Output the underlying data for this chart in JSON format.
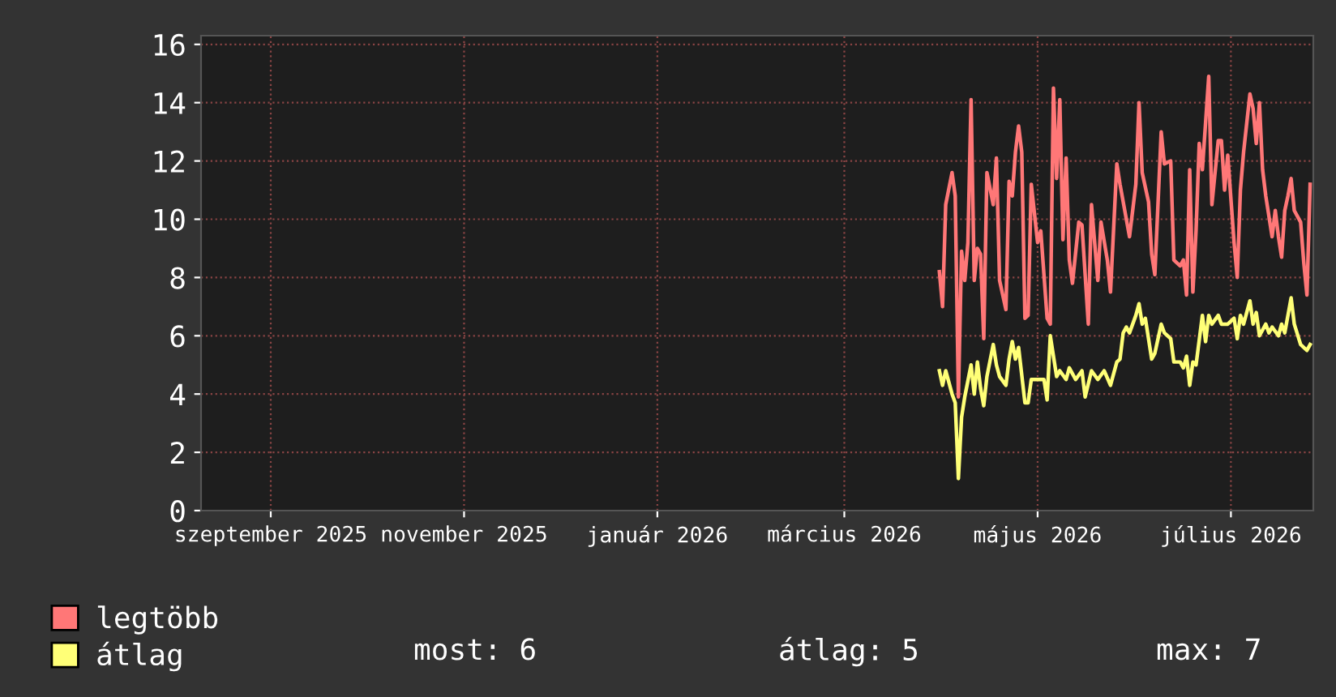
{
  "chart_data": {
    "type": "line",
    "xlim": [
      "2025-08-10",
      "2026-07-27"
    ],
    "xticks": [
      {
        "value": "2025-09-01",
        "label": "szeptember 2025"
      },
      {
        "value": "2025-11-01",
        "label": "november 2025"
      },
      {
        "value": "2026-01-01",
        "label": "január 2026"
      },
      {
        "value": "2026-03-01",
        "label": "március 2026"
      },
      {
        "value": "2026-05-01",
        "label": "május 2026"
      },
      {
        "value": "2026-07-01",
        "label": "július 2026"
      }
    ],
    "ylim": [
      0,
      16.3
    ],
    "yticks": [
      0,
      2,
      4,
      6,
      8,
      10,
      12,
      14,
      16
    ],
    "grid": true,
    "legend": "bottom left",
    "series": [
      {
        "name": "legtöbb",
        "color": "#ff7777",
        "x": [
          "2026-03-31",
          "2026-04-01",
          "2026-04-02",
          "2026-04-04",
          "2026-04-05",
          "2026-04-06",
          "2026-04-07",
          "2026-04-08",
          "2026-04-09",
          "2026-04-10",
          "2026-04-11",
          "2026-04-12",
          "2026-04-13",
          "2026-04-14",
          "2026-04-15",
          "2026-04-17",
          "2026-04-18",
          "2026-04-19",
          "2026-04-21",
          "2026-04-22",
          "2026-04-23",
          "2026-04-24",
          "2026-04-25",
          "2026-04-26",
          "2026-04-27",
          "2026-04-28",
          "2026-04-29",
          "2026-05-01",
          "2026-05-02",
          "2026-05-04",
          "2026-05-05",
          "2026-05-06",
          "2026-05-07",
          "2026-05-08",
          "2026-05-09",
          "2026-05-10",
          "2026-05-11",
          "2026-05-12",
          "2026-05-14",
          "2026-05-15",
          "2026-05-17",
          "2026-05-18",
          "2026-05-20",
          "2026-05-21",
          "2026-05-23",
          "2026-05-24",
          "2026-05-26",
          "2026-05-27",
          "2026-05-28",
          "2026-05-30",
          "2026-06-01",
          "2026-06-02",
          "2026-06-03",
          "2026-06-05",
          "2026-06-06",
          "2026-06-07",
          "2026-06-09",
          "2026-06-10",
          "2026-06-12",
          "2026-06-13",
          "2026-06-15",
          "2026-06-16",
          "2026-06-17",
          "2026-06-18",
          "2026-06-19",
          "2026-06-20",
          "2026-06-21",
          "2026-06-22",
          "2026-06-24",
          "2026-06-25",
          "2026-06-27",
          "2026-06-28",
          "2026-06-29",
          "2026-06-30",
          "2026-07-02",
          "2026-07-03",
          "2026-07-04",
          "2026-07-05",
          "2026-07-07",
          "2026-07-08",
          "2026-07-09",
          "2026-07-10",
          "2026-07-11",
          "2026-07-12",
          "2026-07-14",
          "2026-07-15",
          "2026-07-16",
          "2026-07-17",
          "2026-07-18",
          "2026-07-19",
          "2026-07-20",
          "2026-07-21",
          "2026-07-23",
          "2026-07-24",
          "2026-07-25",
          "2026-07-26"
        ],
        "values": [
          8.2,
          7.0,
          10.5,
          11.6,
          10.8,
          3.9,
          8.9,
          7.9,
          9.2,
          14.1,
          7.9,
          9.0,
          8.8,
          5.9,
          11.6,
          10.5,
          12.1,
          7.9,
          6.9,
          11.3,
          10.8,
          12.3,
          13.2,
          12.3,
          6.6,
          6.7,
          11.2,
          9.2,
          9.6,
          6.6,
          6.4,
          14.5,
          11.4,
          14.1,
          9.3,
          12.1,
          8.6,
          7.8,
          9.9,
          9.8,
          6.4,
          10.5,
          7.9,
          9.9,
          8.6,
          7.5,
          11.9,
          11.2,
          10.6,
          9.4,
          11.2,
          14.0,
          11.6,
          10.6,
          8.8,
          8.1,
          13.0,
          11.9,
          12.0,
          8.6,
          8.4,
          8.6,
          7.4,
          11.7,
          7.5,
          9.6,
          12.6,
          11.7,
          14.9,
          10.5,
          12.7,
          12.7,
          11.0,
          12.2,
          9.2,
          8.0,
          11.0,
          12.3,
          14.3,
          13.8,
          12.6,
          14.0,
          11.7,
          10.8,
          9.4,
          10.3,
          9.4,
          8.7,
          10.3,
          10.8,
          11.4,
          10.3,
          9.9,
          8.5,
          7.4,
          11.2
        ]
      },
      {
        "name": "átlag",
        "color": "#ffff77",
        "x": [
          "2026-03-31",
          "2026-04-01",
          "2026-04-02",
          "2026-04-04",
          "2026-04-05",
          "2026-04-06",
          "2026-04-07",
          "2026-04-08",
          "2026-04-10",
          "2026-04-11",
          "2026-04-12",
          "2026-04-13",
          "2026-04-14",
          "2026-04-15",
          "2026-04-17",
          "2026-04-18",
          "2026-04-19",
          "2026-04-21",
          "2026-04-22",
          "2026-04-23",
          "2026-04-24",
          "2026-04-25",
          "2026-04-27",
          "2026-04-28",
          "2026-04-29",
          "2026-05-01",
          "2026-05-03",
          "2026-05-04",
          "2026-05-05",
          "2026-05-07",
          "2026-05-08",
          "2026-05-10",
          "2026-05-11",
          "2026-05-13",
          "2026-05-15",
          "2026-05-16",
          "2026-05-18",
          "2026-05-20",
          "2026-05-22",
          "2026-05-24",
          "2026-05-26",
          "2026-05-27",
          "2026-05-28",
          "2026-05-29",
          "2026-05-30",
          "2026-06-01",
          "2026-06-02",
          "2026-06-03",
          "2026-06-04",
          "2026-06-06",
          "2026-06-07",
          "2026-06-09",
          "2026-06-10",
          "2026-06-12",
          "2026-06-13",
          "2026-06-15",
          "2026-06-16",
          "2026-06-17",
          "2026-06-18",
          "2026-06-19",
          "2026-06-20",
          "2026-06-22",
          "2026-06-23",
          "2026-06-24",
          "2026-06-25",
          "2026-06-27",
          "2026-06-28",
          "2026-06-30",
          "2026-07-02",
          "2026-07-03",
          "2026-07-04",
          "2026-07-05",
          "2026-07-07",
          "2026-07-08",
          "2026-07-09",
          "2026-07-10",
          "2026-07-12",
          "2026-07-13",
          "2026-07-14",
          "2026-07-16",
          "2026-07-17",
          "2026-07-18",
          "2026-07-20",
          "2026-07-21",
          "2026-07-23",
          "2026-07-25",
          "2026-07-26"
        ],
        "values": [
          4.8,
          4.3,
          4.8,
          4.0,
          3.7,
          1.1,
          3.2,
          3.9,
          5.0,
          4.0,
          5.1,
          4.2,
          3.6,
          4.6,
          5.7,
          5.0,
          4.6,
          4.3,
          5.2,
          5.8,
          5.2,
          5.6,
          3.7,
          3.7,
          4.5,
          4.5,
          4.5,
          3.8,
          6.0,
          4.6,
          4.8,
          4.5,
          4.9,
          4.5,
          4.8,
          3.9,
          4.8,
          4.5,
          4.8,
          4.3,
          5.1,
          5.2,
          6.1,
          6.3,
          6.1,
          6.7,
          7.1,
          6.4,
          6.6,
          5.2,
          5.4,
          6.4,
          6.1,
          5.9,
          5.1,
          5.1,
          4.9,
          5.3,
          4.3,
          5.1,
          5.0,
          6.7,
          5.8,
          6.7,
          6.4,
          6.7,
          6.4,
          6.4,
          6.6,
          5.9,
          6.7,
          6.4,
          7.2,
          6.4,
          6.8,
          6.0,
          6.4,
          6.1,
          6.3,
          6.0,
          6.4,
          6.1,
          7.3,
          6.4,
          5.7,
          5.5,
          5.7
        ]
      }
    ],
    "annotations": [
      "most: 6",
      "átlag: 5",
      "max: 7"
    ]
  }
}
